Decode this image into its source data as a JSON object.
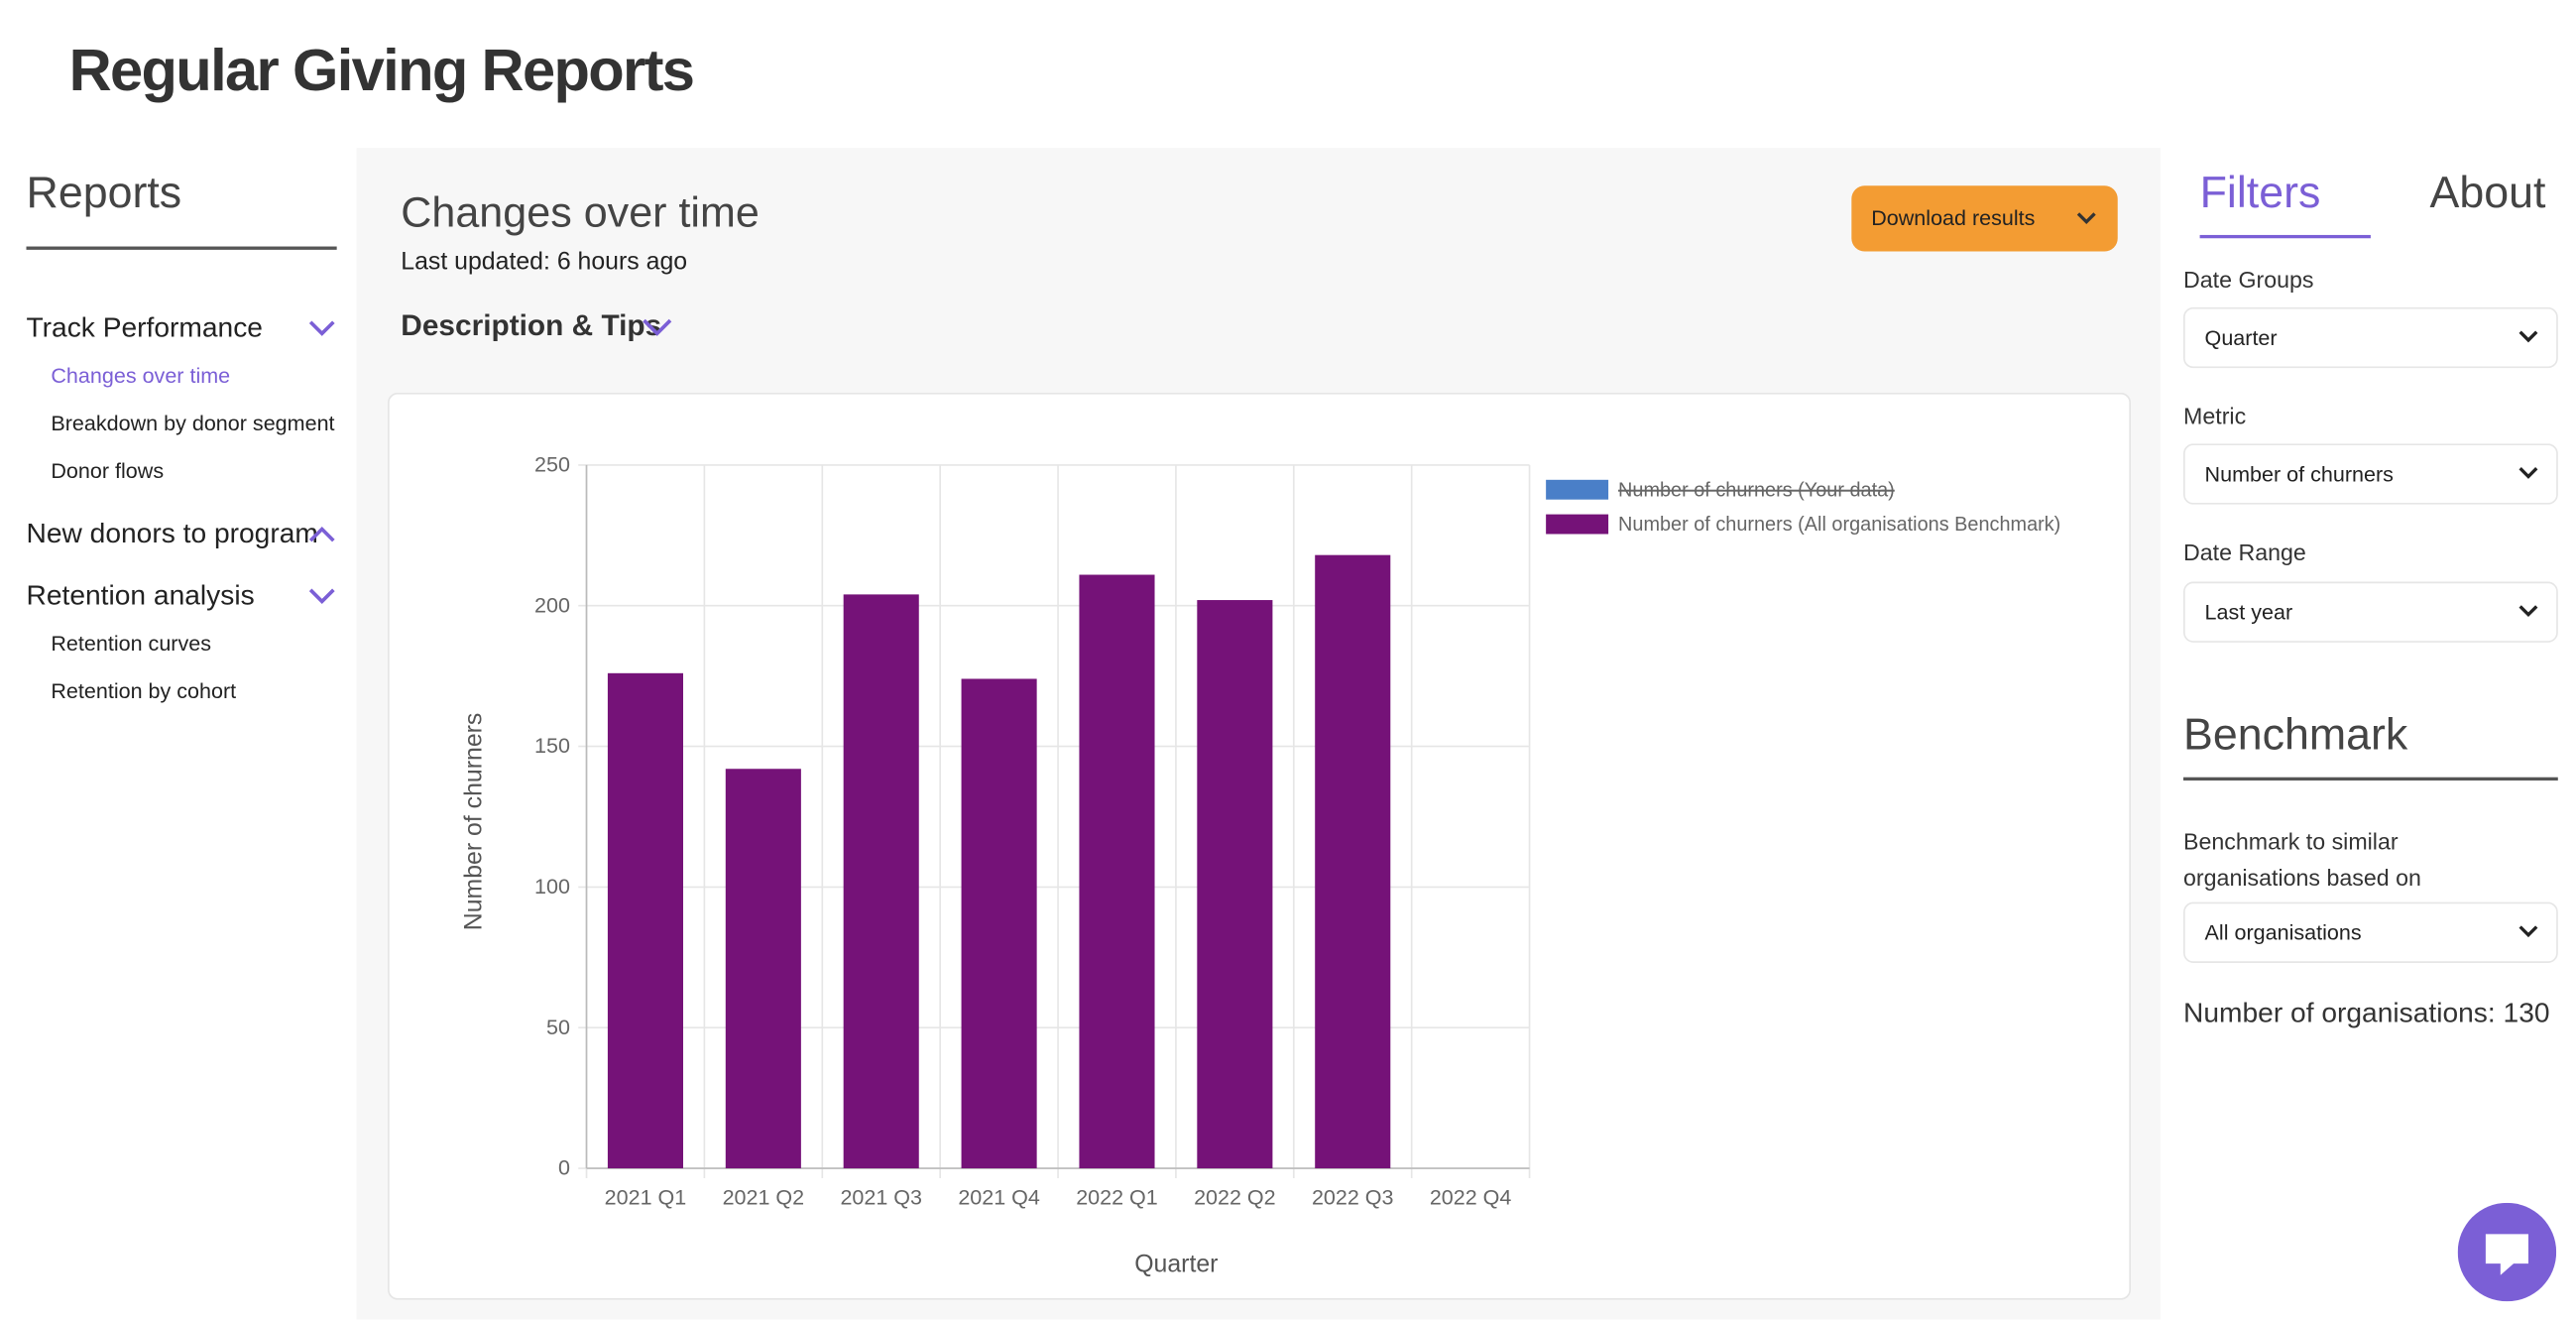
{
  "header": {
    "title": "Regular Giving Reports"
  },
  "sidebar": {
    "title": "Reports",
    "groups": [
      {
        "label": "Track Performance",
        "items": [
          "Changes over time",
          "Breakdown by donor segment",
          "Donor flows"
        ]
      },
      {
        "label": "New donors to program",
        "items": []
      },
      {
        "label": "Retention analysis",
        "items": [
          "Retention curves",
          "Retention by cohort"
        ]
      }
    ]
  },
  "main": {
    "title": "Changes over time",
    "updated": "Last updated: 6 hours ago",
    "description": "Description & Tips",
    "download": "Download results"
  },
  "chart_data": {
    "type": "bar",
    "xlabel": "Quarter",
    "ylabel": "Number of churners",
    "categories": [
      "2021 Q1",
      "2021 Q2",
      "2021 Q3",
      "2021 Q4",
      "2022 Q1",
      "2022 Q2",
      "2022 Q3",
      "2022 Q4"
    ],
    "series": [
      {
        "name": "Number of churners (Your data)",
        "color": "#4a7fc8",
        "hidden": true,
        "values": [
          null,
          null,
          null,
          null,
          null,
          null,
          null,
          null
        ]
      },
      {
        "name": "Number of churners (All organisations Benchmark)",
        "color": "#751278",
        "values": [
          176,
          142,
          204,
          174,
          211,
          202,
          218,
          null
        ]
      }
    ],
    "ylim": [
      0,
      250
    ],
    "yticks": [
      0,
      50,
      100,
      150,
      200,
      250
    ],
    "grid": true,
    "legend": "right"
  },
  "filters": {
    "tabs": [
      "Filters",
      "About"
    ],
    "fields": [
      {
        "label": "Date Groups",
        "value": "Quarter"
      },
      {
        "label": "Metric",
        "value": "Number of churners"
      },
      {
        "label": "Date Range",
        "value": "Last year"
      }
    ],
    "benchmark": {
      "title": "Benchmark",
      "label": "Benchmark to similar organisations based on",
      "value": "All organisations",
      "count": "Number of organisations: 130"
    }
  }
}
